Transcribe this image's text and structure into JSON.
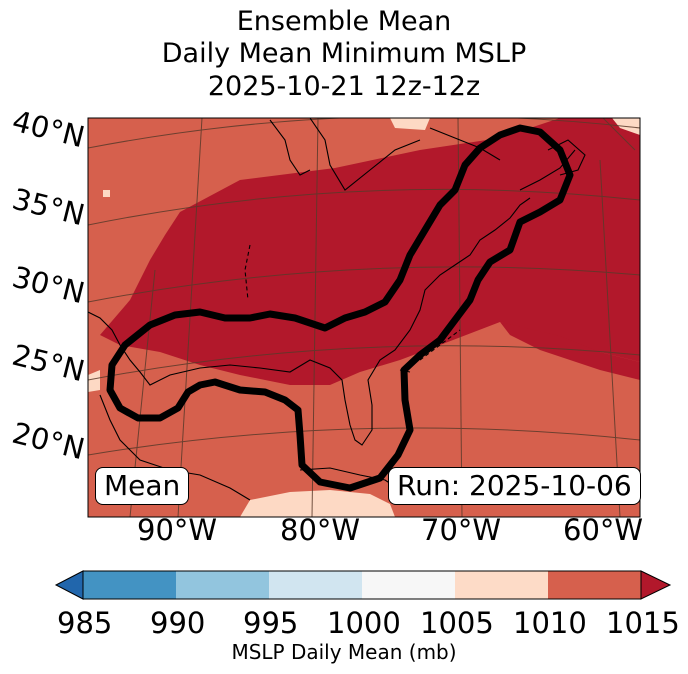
{
  "title": {
    "line1": "Ensemble Mean",
    "line2": "Daily Mean Minimum MSLP",
    "line3": "2025-10-21 12z-12z"
  },
  "map": {
    "lat_labels": [
      "40°N",
      "35°N",
      "30°N",
      "25°N",
      "20°N"
    ],
    "lon_labels": [
      "90°W",
      "80°W",
      "70°W",
      "60°W"
    ],
    "mean_badge": "Mean",
    "run_badge": "Run: 2025-10-06",
    "colors": {
      "c1005_1010": "#fdd9c4",
      "c1010_1015": "#d6604d",
      "c1015_plus": "#b2182b",
      "contour": "#000000",
      "grid": "#5a3a2a"
    }
  },
  "colorbar": {
    "label": "MSLP Daily Mean (mb)",
    "ticks": [
      "985",
      "990",
      "995",
      "1000",
      "1005",
      "1010",
      "1015"
    ],
    "colors": [
      "#2166ac",
      "#4393c3",
      "#92c5de",
      "#d1e5f0",
      "#f7f7f7",
      "#fddbc7",
      "#d6604d",
      "#b2182b"
    ]
  }
}
